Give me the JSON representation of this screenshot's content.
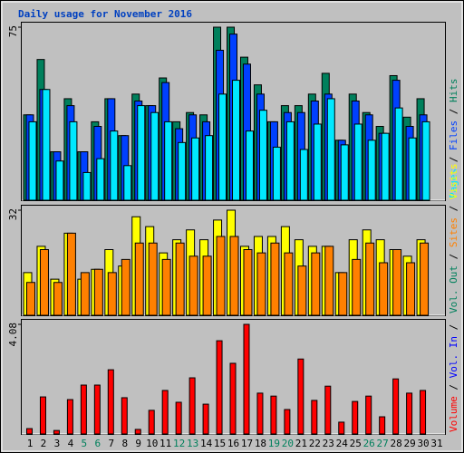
{
  "chart_data": [
    {
      "type": "bar",
      "title": "Daily usage for November 2016",
      "separator": "/",
      "ylim": [
        0,
        75
      ],
      "yticks": [
        75
      ],
      "series": [
        {
          "name": "Hits",
          "color": "#00805c",
          "values": [
            37,
            61,
            21,
            44,
            21,
            34,
            44,
            28,
            46,
            41,
            53,
            34,
            38,
            37,
            75,
            75,
            62,
            50,
            34,
            41,
            41,
            46,
            55,
            26,
            46,
            38,
            32,
            54,
            36,
            44,
            null
          ]
        },
        {
          "name": "Files",
          "color": "#0040ff",
          "values": [
            37,
            48,
            21,
            41,
            21,
            32,
            44,
            28,
            43,
            41,
            51,
            31,
            37,
            34,
            65,
            72,
            59,
            46,
            34,
            38,
            38,
            43,
            46,
            26,
            43,
            37,
            29,
            52,
            32,
            37,
            null
          ]
        },
        {
          "name": "Pages",
          "color": "#00e8ff",
          "values": [
            34,
            48,
            17,
            34,
            12,
            18,
            30,
            15,
            41,
            38,
            34,
            25,
            27,
            28,
            46,
            52,
            30,
            39,
            23,
            34,
            22,
            33,
            44,
            24,
            33,
            26,
            29,
            40,
            27,
            34,
            null
          ]
        }
      ]
    },
    {
      "type": "bar",
      "ylim": [
        0,
        32
      ],
      "yticks": [
        32
      ],
      "extra_labels": [
        {
          "text": "Vol. Out",
          "color": "#00805c"
        }
      ],
      "series": [
        {
          "name": "Visits",
          "color": "#ffff00",
          "values": [
            13,
            21,
            11,
            25,
            11,
            14,
            20,
            15,
            30,
            27,
            19,
            23,
            26,
            23,
            29,
            32,
            21,
            24,
            24,
            27,
            23,
            21,
            21,
            13,
            23,
            26,
            23,
            20,
            18,
            23,
            null
          ]
        },
        {
          "name": "Sites",
          "color": "#ff8000",
          "values": [
            10,
            20,
            10,
            25,
            13,
            14,
            13,
            17,
            22,
            22,
            17,
            22,
            18,
            18,
            24,
            24,
            20,
            19,
            22,
            19,
            15,
            19,
            21,
            13,
            17,
            22,
            16,
            20,
            16,
            22,
            null
          ]
        }
      ]
    },
    {
      "type": "bar",
      "ylim": [
        0,
        4.08
      ],
      "yticks": [
        4.08
      ],
      "extra_labels": [
        {
          "text": "Vol. In",
          "color": "#0000ff"
        }
      ],
      "categories": [
        "1",
        "2",
        "3",
        "4",
        "5",
        "6",
        "7",
        "8",
        "9",
        "10",
        "11",
        "12",
        "13",
        "14",
        "15",
        "16",
        "17",
        "18",
        "19",
        "20",
        "21",
        "22",
        "23",
        "24",
        "25",
        "26",
        "27",
        "28",
        "29",
        "30",
        "31"
      ],
      "category_colors": [
        "#000000",
        "#000000",
        "#000000",
        "#000000",
        "#00805c",
        "#00805c",
        "#000000",
        "#000000",
        "#000000",
        "#000000",
        "#000000",
        "#00805c",
        "#00805c",
        "#000000",
        "#000000",
        "#000000",
        "#000000",
        "#000000",
        "#00805c",
        "#00805c",
        "#000000",
        "#000000",
        "#000000",
        "#000000",
        "#000000",
        "#00805c",
        "#00805c",
        "#000000",
        "#000000",
        "#000000",
        "#000000"
      ],
      "series": [
        {
          "name": "Volume",
          "color": "#ff0000",
          "values": [
            0.2,
            1.38,
            0.13,
            1.28,
            1.82,
            1.82,
            2.39,
            1.35,
            0.17,
            0.88,
            1.62,
            1.18,
            2.09,
            1.11,
            3.47,
            2.63,
            4.08,
            1.52,
            1.41,
            0.91,
            2.79,
            1.25,
            1.78,
            0.44,
            1.21,
            1.41,
            0.64,
            2.05,
            1.52,
            1.62,
            null
          ]
        }
      ]
    }
  ]
}
